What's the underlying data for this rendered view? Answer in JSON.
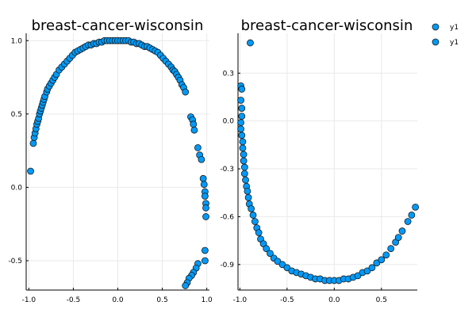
{
  "chart_data": [
    {
      "type": "scatter",
      "title": "breast-cancer-wisconsin",
      "xlabel": "",
      "ylabel": "",
      "xlim": [
        -1.03,
        1.03
      ],
      "ylim": [
        -0.7,
        1.05
      ],
      "xticks": [
        -1.0,
        -0.5,
        0.0,
        0.5,
        1.0
      ],
      "xtick_labels": [
        "-1.0",
        "-0.5",
        "0.0",
        "0.5",
        "1.0"
      ],
      "yticks": [
        -0.5,
        0.0,
        0.5,
        1.0
      ],
      "ytick_labels": [
        "-0.5",
        "0.0",
        "0.5",
        "1.0"
      ],
      "grid": true,
      "color": "#009af9",
      "series": [
        {
          "name": "",
          "x": [
            -0.98,
            -0.95,
            -0.94,
            -0.93,
            -0.92,
            -0.91,
            -0.9,
            -0.89,
            -0.88,
            -0.87,
            -0.86,
            -0.85,
            -0.84,
            -0.83,
            -0.82,
            -0.8,
            -0.79,
            -0.77,
            -0.75,
            -0.73,
            -0.71,
            -0.69,
            -0.66,
            -0.63,
            -0.6,
            -0.57,
            -0.54,
            -0.51,
            -0.48,
            -0.45,
            -0.42,
            -0.39,
            -0.36,
            -0.33,
            -0.3,
            -0.27,
            -0.24,
            -0.21,
            -0.18,
            -0.15,
            -0.12,
            -0.09,
            -0.06,
            -0.03,
            0.0,
            0.03,
            0.06,
            0.09,
            0.12,
            0.15,
            0.18,
            0.21,
            0.24,
            0.27,
            0.3,
            0.33,
            0.36,
            0.39,
            0.42,
            0.45,
            0.48,
            0.51,
            0.54,
            0.57,
            0.6,
            0.62,
            0.64,
            0.66,
            0.68,
            0.7,
            0.72,
            0.74,
            0.76,
            0.82,
            0.84,
            0.85,
            0.86,
            0.9,
            0.92,
            0.94,
            0.96,
            0.97,
            0.98,
            0.98,
            0.99,
            0.99,
            0.99,
            0.98,
            0.98,
            0.9,
            0.88,
            0.85,
            0.83,
            0.8,
            0.78,
            0.76
          ],
          "y": [
            0.11,
            0.3,
            0.34,
            0.37,
            0.4,
            0.43,
            0.45,
            0.47,
            0.5,
            0.52,
            0.54,
            0.56,
            0.58,
            0.6,
            0.62,
            0.65,
            0.67,
            0.69,
            0.71,
            0.73,
            0.75,
            0.77,
            0.8,
            0.82,
            0.84,
            0.86,
            0.88,
            0.9,
            0.92,
            0.93,
            0.94,
            0.95,
            0.96,
            0.97,
            0.97,
            0.98,
            0.98,
            0.99,
            0.99,
            1.0,
            1.0,
            1.0,
            1.0,
            1.0,
            1.0,
            1.0,
            1.0,
            1.0,
            1.0,
            0.99,
            0.99,
            0.98,
            0.98,
            0.97,
            0.96,
            0.96,
            0.95,
            0.94,
            0.93,
            0.92,
            0.9,
            0.88,
            0.86,
            0.84,
            0.82,
            0.8,
            0.79,
            0.77,
            0.75,
            0.73,
            0.7,
            0.68,
            0.65,
            0.48,
            0.46,
            0.43,
            0.39,
            0.27,
            0.22,
            0.19,
            0.06,
            0.02,
            -0.03,
            -0.06,
            -0.11,
            -0.14,
            -0.2,
            -0.43,
            -0.5,
            -0.52,
            -0.55,
            -0.58,
            -0.6,
            -0.62,
            -0.65,
            -0.67
          ]
        }
      ]
    },
    {
      "type": "scatter",
      "title": "breast-cancer-wisconsin",
      "xlabel": "",
      "ylabel": "",
      "xlim": [
        -1.02,
        0.88
      ],
      "ylim": [
        -1.06,
        0.55
      ],
      "xticks": [
        -1.0,
        -0.5,
        0.0,
        0.5
      ],
      "xtick_labels": [
        "-1.0",
        "-0.5",
        "0.0",
        "0.5"
      ],
      "yticks": [
        -0.9,
        -0.6,
        -0.3,
        0.0,
        0.3
      ],
      "ytick_labels": [
        "-0.9",
        "-0.6",
        "-0.3",
        "0.0",
        "0.3"
      ],
      "grid": true,
      "color": "#009af9",
      "legend": {
        "placement": "top-right",
        "entries": [
          "y1",
          "y1"
        ]
      },
      "series": [
        {
          "name": "y1",
          "x": [
            -0.89,
            -0.99,
            -0.98,
            -0.99,
            -0.98,
            -0.98,
            -0.99,
            -0.99,
            -0.98,
            -0.97,
            -0.97,
            -0.96,
            -0.96,
            -0.95,
            -0.95,
            -0.94,
            -0.93,
            -0.92,
            -0.91,
            -0.9,
            -0.88,
            -0.86,
            -0.84,
            -0.82,
            -0.8,
            -0.78,
            -0.75,
            -0.72,
            -0.68,
            -0.64,
            -0.6,
            -0.55,
            -0.5,
            -0.45,
            -0.4,
            -0.35,
            -0.3,
            -0.25,
            -0.2,
            -0.15,
            -0.1,
            -0.05,
            0.0,
            0.05,
            0.1,
            0.15,
            0.2,
            0.25,
            0.3,
            0.35,
            0.4,
            0.45,
            0.5,
            0.55,
            0.6,
            0.65,
            0.68,
            0.72,
            0.78,
            0.82
          ],
          "y": [
            0.49,
            0.22,
            0.2,
            0.13,
            0.08,
            0.03,
            -0.01,
            -0.05,
            -0.09,
            -0.13,
            -0.17,
            -0.21,
            -0.25,
            -0.29,
            -0.33,
            -0.37,
            -0.41,
            -0.44,
            -0.48,
            -0.52,
            -0.55,
            -0.59,
            -0.63,
            -0.67,
            -0.7,
            -0.74,
            -0.77,
            -0.8,
            -0.83,
            -0.86,
            -0.88,
            -0.9,
            -0.92,
            -0.94,
            -0.95,
            -0.96,
            -0.97,
            -0.98,
            -0.99,
            -0.99,
            -1.0,
            -1.0,
            -1.0,
            -1.0,
            -0.99,
            -0.99,
            -0.98,
            -0.97,
            -0.95,
            -0.94,
            -0.92,
            -0.89,
            -0.87,
            -0.84,
            -0.8,
            -0.76,
            -0.73,
            -0.69,
            -0.63,
            -0.59
          ]
        },
        {
          "name": "y1",
          "x": [
            0.86
          ],
          "y": [
            -0.54
          ]
        }
      ]
    }
  ]
}
